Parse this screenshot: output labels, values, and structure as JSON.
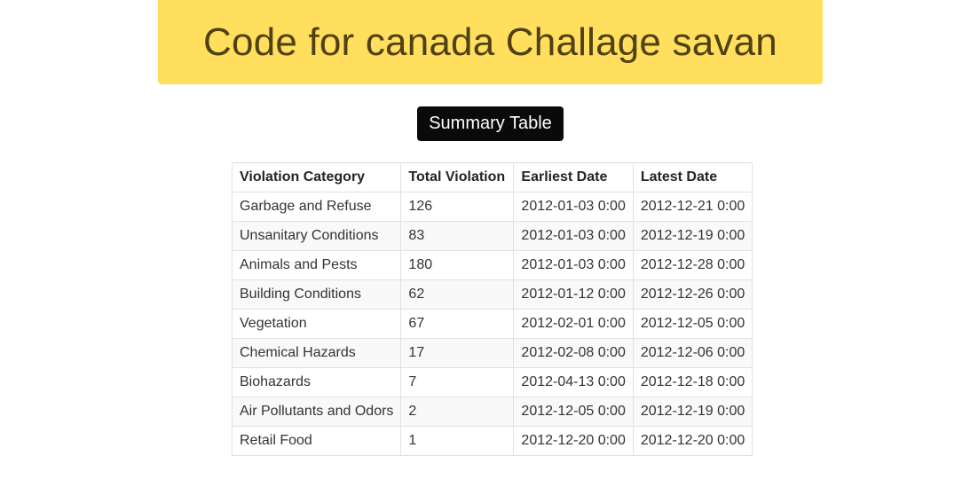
{
  "header": {
    "title": "Code for canada Challage savan",
    "background_color": "#ffdf5d",
    "title_color": "#4f4113"
  },
  "summary_button": {
    "label": "Summary Table",
    "background_color": "#0a0a0a"
  },
  "table": {
    "columns": [
      "Violation Category",
      "Total Violation",
      "Earliest Date",
      "Latest Date"
    ],
    "rows": [
      {
        "category": "Garbage and Refuse",
        "total": "126",
        "earliest": "2012-01-03 0:00",
        "latest": "2012-12-21 0:00"
      },
      {
        "category": "Unsanitary Conditions",
        "total": "83",
        "earliest": "2012-01-03 0:00",
        "latest": "2012-12-19 0:00"
      },
      {
        "category": "Animals and Pests",
        "total": "180",
        "earliest": "2012-01-03 0:00",
        "latest": "2012-12-28 0:00"
      },
      {
        "category": "Building Conditions",
        "total": "62",
        "earliest": "2012-01-12 0:00",
        "latest": "2012-12-26 0:00"
      },
      {
        "category": "Vegetation",
        "total": "67",
        "earliest": "2012-02-01 0:00",
        "latest": "2012-12-05 0:00"
      },
      {
        "category": "Chemical Hazards",
        "total": "17",
        "earliest": "2012-02-08 0:00",
        "latest": "2012-12-06 0:00"
      },
      {
        "category": "Biohazards",
        "total": "7",
        "earliest": "2012-04-13 0:00",
        "latest": "2012-12-18 0:00"
      },
      {
        "category": "Air Pollutants and Odors",
        "total": "2",
        "earliest": "2012-12-05 0:00",
        "latest": "2012-12-19 0:00"
      },
      {
        "category": "Retail Food",
        "total": "1",
        "earliest": "2012-12-20 0:00",
        "latest": "2012-12-20 0:00"
      }
    ]
  }
}
